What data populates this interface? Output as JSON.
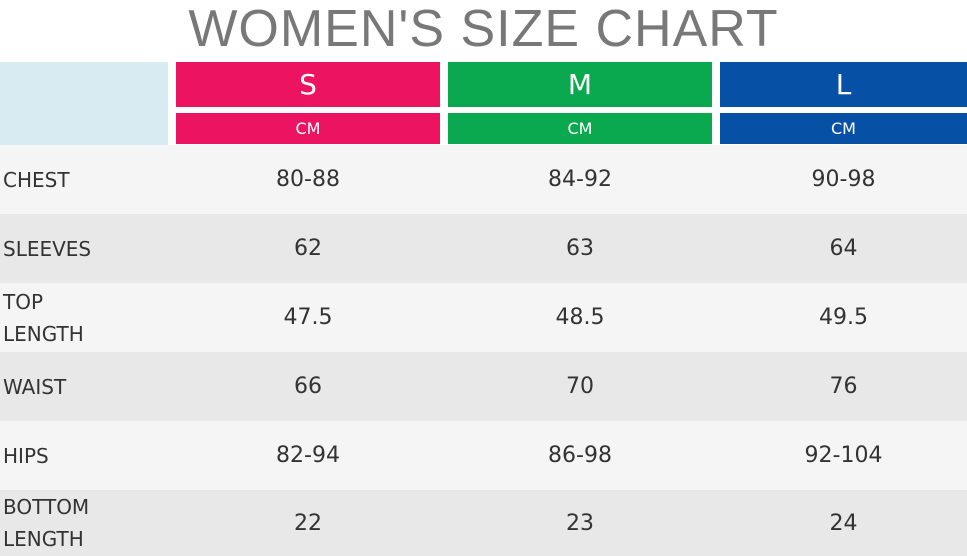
{
  "title": "WOMEN'S SIZE CHART",
  "table": {
    "sizes": [
      {
        "label": "S",
        "unit": "CM",
        "color": "#ec1460"
      },
      {
        "label": "M",
        "unit": "CM",
        "color": "#0aa84f"
      },
      {
        "label": "L",
        "unit": "CM",
        "color": "#0650a5"
      }
    ],
    "rows": [
      [
        "CHEST",
        "80-88",
        "84-92",
        "90-98"
      ],
      [
        "SLEEVES",
        "62",
        "63",
        "64"
      ],
      [
        "TOP LENGTH",
        "47.5",
        "48.5",
        "49.5"
      ],
      [
        "WAIST",
        "66",
        "70",
        "76"
      ],
      [
        "HIPS",
        "82-94",
        "86-98",
        "92-104"
      ],
      [
        "BOTTOM LENGTH",
        "22",
        "23",
        "24"
      ]
    ]
  }
}
